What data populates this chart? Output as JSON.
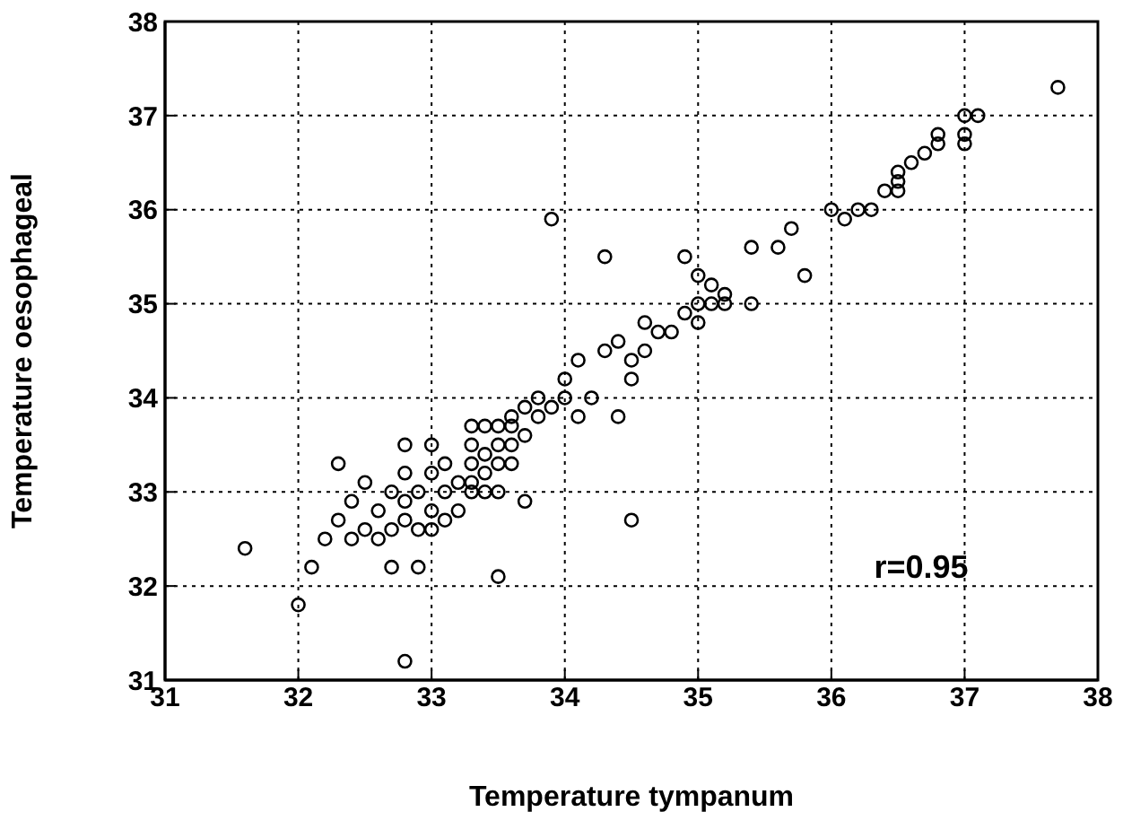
{
  "chart_data": {
    "type": "scatter",
    "xlabel": "Temperature tympanum",
    "ylabel": "Temperature oesophageal",
    "x": [
      31.6,
      32.0,
      32.1,
      32.2,
      32.3,
      32.3,
      32.4,
      32.4,
      32.5,
      32.5,
      32.6,
      32.6,
      32.7,
      32.7,
      32.7,
      32.8,
      32.8,
      32.8,
      32.8,
      32.8,
      32.9,
      32.9,
      32.9,
      33.0,
      33.0,
      33.0,
      33.0,
      33.1,
      33.1,
      33.1,
      33.2,
      33.2,
      33.3,
      33.3,
      33.3,
      33.3,
      33.3,
      33.4,
      33.4,
      33.4,
      33.4,
      33.5,
      33.5,
      33.5,
      33.5,
      33.5,
      33.6,
      33.6,
      33.6,
      33.6,
      33.7,
      33.7,
      33.7,
      33.8,
      33.8,
      33.9,
      33.9,
      34.0,
      34.0,
      34.1,
      34.1,
      34.2,
      34.3,
      34.3,
      34.4,
      34.4,
      34.5,
      34.5,
      34.5,
      34.6,
      34.6,
      34.7,
      34.8,
      34.9,
      34.9,
      35.0,
      35.0,
      35.0,
      35.1,
      35.1,
      35.2,
      35.2,
      35.4,
      35.4,
      35.6,
      35.7,
      35.8,
      36.0,
      36.1,
      36.2,
      36.3,
      36.4,
      36.5,
      36.5,
      36.5,
      36.6,
      36.7,
      36.8,
      36.8,
      37.0,
      37.0,
      37.0,
      37.1,
      37.7
    ],
    "values": [
      32.4,
      31.8,
      32.2,
      32.5,
      32.7,
      33.3,
      32.9,
      32.5,
      33.1,
      32.6,
      32.8,
      32.5,
      32.6,
      33.0,
      32.2,
      32.7,
      33.5,
      33.2,
      32.9,
      31.2,
      32.2,
      32.6,
      33.0,
      33.5,
      33.2,
      32.8,
      32.6,
      33.3,
      33.0,
      32.7,
      33.1,
      32.8,
      33.7,
      33.5,
      33.3,
      33.1,
      33.0,
      33.7,
      33.4,
      33.2,
      33.0,
      33.7,
      33.5,
      33.3,
      33.0,
      32.1,
      33.7,
      33.5,
      33.3,
      33.8,
      33.9,
      33.6,
      32.9,
      34.0,
      33.8,
      33.9,
      35.9,
      34.2,
      34.0,
      33.8,
      34.4,
      34.0,
      35.5,
      34.5,
      34.6,
      33.8,
      34.4,
      34.2,
      32.7,
      34.5,
      34.8,
      34.7,
      34.7,
      34.9,
      35.5,
      35.0,
      34.8,
      35.3,
      35.2,
      35.0,
      35.1,
      35.0,
      35.6,
      35.0,
      35.6,
      35.8,
      35.3,
      36.0,
      35.9,
      36.0,
      36.0,
      36.2,
      36.2,
      36.3,
      36.4,
      36.5,
      36.6,
      36.7,
      36.8,
      37.0,
      36.8,
      36.7,
      37.0,
      37.3
    ],
    "color": "#000000",
    "marker": "circle",
    "xlim": [
      31,
      38
    ],
    "xticks": [
      31,
      32,
      33,
      34,
      35,
      36,
      37,
      38
    ],
    "ylim": [
      31,
      38
    ],
    "yticks": [
      31,
      32,
      33,
      34,
      35,
      36,
      37,
      38
    ],
    "grid": true,
    "annotations": [
      "r=0.95"
    ]
  }
}
